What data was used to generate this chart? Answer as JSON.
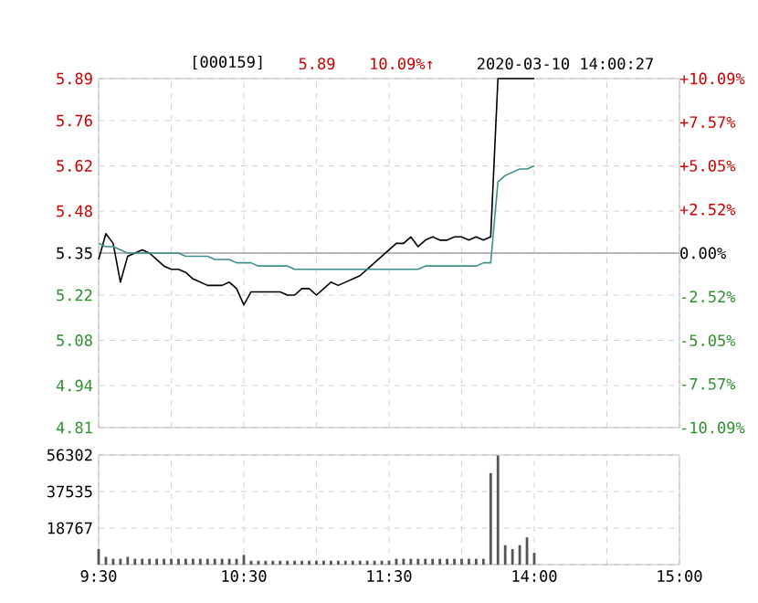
{
  "chart_data": [
    {
      "type": "line",
      "title": "[000159]",
      "annotations": [
        "5.89",
        "10.09%↑",
        "2020-03-10 14:00:27"
      ],
      "categories": [
        null,
        null,
        null,
        null,
        null,
        null,
        null,
        null,
        null,
        null,
        null,
        null,
        null,
        null,
        null,
        null,
        null,
        null,
        null,
        null,
        null,
        null,
        null,
        null,
        null,
        null,
        null,
        null,
        null,
        null,
        null,
        null,
        null,
        null,
        null,
        null,
        null,
        null,
        null,
        null,
        null,
        null,
        null,
        null,
        null,
        null,
        null,
        null,
        null,
        null,
        null,
        null,
        null,
        null,
        null,
        null,
        null,
        null,
        null,
        null,
        null,
        null,
        null,
        null,
        null,
        null,
        null,
        null,
        null,
        null,
        null,
        null,
        null,
        null,
        null,
        null,
        null,
        null,
        null,
        null,
        null
      ],
      "series": [
        {
          "color": "#000000",
          "values": [
            5.33,
            5.41,
            5.38,
            5.26,
            5.34,
            5.35,
            5.36,
            5.35,
            5.33,
            5.31,
            5.3,
            5.3,
            5.29,
            5.27,
            5.26,
            5.25,
            5.25,
            5.25,
            5.26,
            5.24,
            5.19,
            5.23,
            5.23,
            5.23,
            5.23,
            5.23,
            5.22,
            5.22,
            5.24,
            5.24,
            5.22,
            5.24,
            5.26,
            5.25,
            5.26,
            5.27,
            5.28,
            5.3,
            5.32,
            5.34,
            5.36,
            5.38,
            5.38,
            5.4,
            5.37,
            5.39,
            5.4,
            5.39,
            5.39,
            5.4,
            5.4,
            5.39,
            5.4,
            5.39,
            5.4,
            5.89,
            5.89,
            5.89,
            5.89,
            5.89,
            5.89,
            null,
            null,
            null,
            null,
            null,
            null,
            null,
            null,
            null,
            null,
            null,
            null,
            null,
            null,
            null,
            null,
            null,
            null,
            null,
            null
          ]
        },
        {
          "color": "#3f8f8c",
          "values": [
            5.38,
            5.37,
            5.37,
            5.36,
            5.35,
            5.35,
            5.35,
            5.35,
            5.35,
            5.35,
            5.35,
            5.35,
            5.34,
            5.34,
            5.34,
            5.34,
            5.33,
            5.33,
            5.33,
            5.32,
            5.32,
            5.32,
            5.31,
            5.31,
            5.31,
            5.31,
            5.31,
            5.3,
            5.3,
            5.3,
            5.3,
            5.3,
            5.3,
            5.3,
            5.3,
            5.3,
            5.3,
            5.3,
            5.3,
            5.3,
            5.3,
            5.3,
            5.3,
            5.3,
            5.3,
            5.31,
            5.31,
            5.31,
            5.31,
            5.31,
            5.31,
            5.31,
            5.31,
            5.32,
            5.32,
            5.57,
            5.59,
            5.6,
            5.61,
            5.61,
            5.62,
            null,
            null,
            null,
            null,
            null,
            null,
            null,
            null,
            null,
            null,
            null,
            null,
            null,
            null,
            null,
            null,
            null,
            null,
            null,
            null
          ]
        }
      ],
      "ylim": [
        4.81,
        5.89
      ],
      "yticks": [
        5.89,
        5.76,
        5.62,
        5.48,
        5.35,
        5.22,
        5.08,
        4.94,
        4.81
      ],
      "y2lim": [
        -10.09,
        10.09
      ],
      "y2ticks": [
        {
          "value": 10.09,
          "label": "+10.09%"
        },
        {
          "value": 7.57,
          "label": "+7.57%"
        },
        {
          "value": 5.05,
          "label": "+5.05%"
        },
        {
          "value": 2.52,
          "label": "+2.52%"
        },
        {
          "value": 0,
          "label": "0.00%"
        },
        {
          "value": -2.52,
          "label": "-2.52%"
        },
        {
          "value": -5.05,
          "label": "-5.05%"
        },
        {
          "value": -7.57,
          "label": "-7.57%"
        },
        {
          "value": -10.09,
          "label": "-10.09%"
        }
      ],
      "grid": true,
      "ref_lines": [
        {
          "axis": "y",
          "value": 5.35,
          "color": "#a0a0a0"
        }
      ]
    },
    {
      "type": "bar",
      "color": "#555555",
      "categories": [
        "9:30",
        null,
        null,
        null,
        null,
        null,
        null,
        null,
        null,
        null,
        null,
        null,
        null,
        null,
        null,
        null,
        null,
        null,
        null,
        null,
        "10:30",
        null,
        null,
        null,
        null,
        null,
        null,
        null,
        null,
        null,
        null,
        null,
        null,
        null,
        null,
        null,
        null,
        null,
        null,
        null,
        "11:30",
        null,
        null,
        null,
        null,
        null,
        null,
        null,
        null,
        null,
        null,
        null,
        null,
        null,
        null,
        null,
        null,
        null,
        null,
        null,
        "14:00",
        null,
        null,
        null,
        null,
        null,
        null,
        null,
        null,
        null,
        null,
        null,
        null,
        null,
        null,
        null,
        null,
        null,
        null,
        null,
        "15:00"
      ],
      "values": [
        8000,
        4000,
        3000,
        3000,
        4000,
        3000,
        3000,
        3000,
        3000,
        3000,
        3000,
        3000,
        3000,
        3000,
        3000,
        3000,
        3000,
        3000,
        3000,
        3000,
        5000,
        2000,
        2000,
        2000,
        2000,
        2000,
        2000,
        2000,
        2000,
        2000,
        2000,
        2000,
        2000,
        2000,
        2000,
        2000,
        2000,
        2000,
        2000,
        2000,
        2000,
        3000,
        3000,
        3000,
        3000,
        3000,
        3000,
        3000,
        3000,
        3000,
        3000,
        3000,
        3000,
        3000,
        47000,
        56000,
        10000,
        8000,
        10000,
        14000,
        6000,
        null,
        null,
        null,
        null,
        null,
        null,
        null,
        null,
        null,
        null,
        null,
        null,
        null,
        null,
        null,
        null,
        null,
        null,
        null,
        null
      ],
      "ylim": [
        0,
        56302
      ],
      "yticks": [
        {
          "value": 0,
          "label": null
        },
        18767,
        37535,
        56302
      ],
      "grid": true
    }
  ]
}
